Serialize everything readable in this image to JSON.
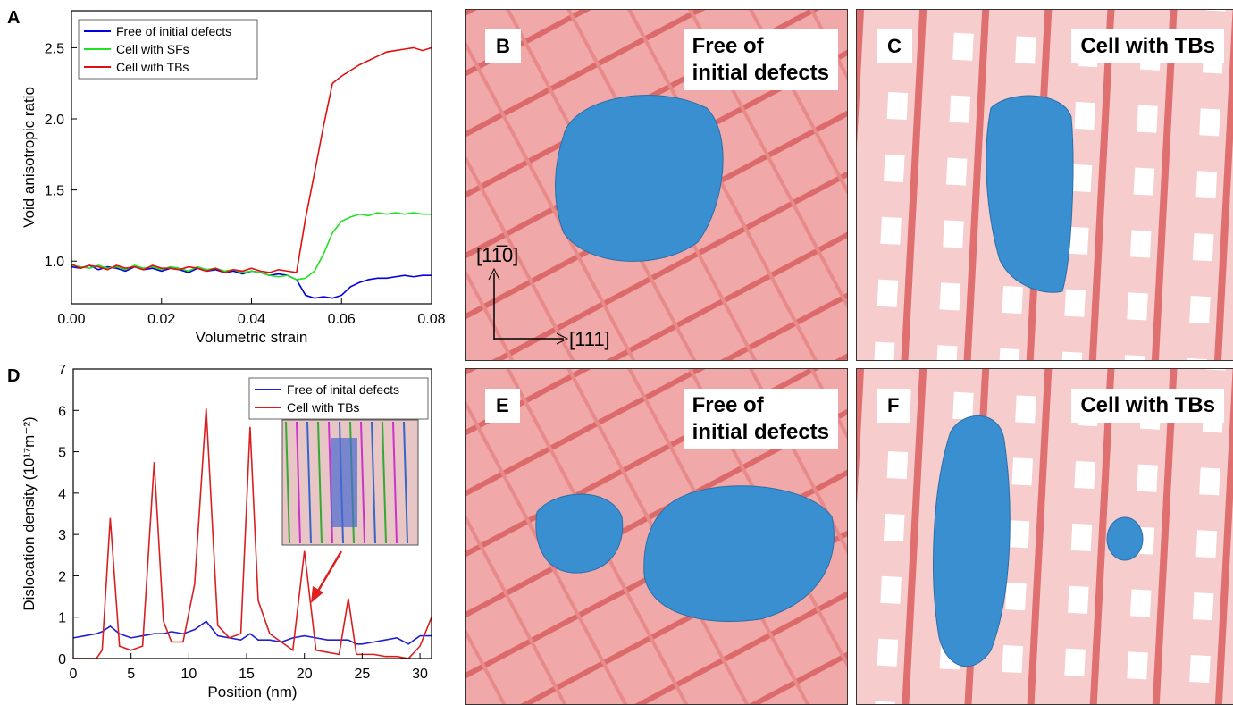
{
  "chart_data": [
    {
      "type": "line",
      "panel_label": "A",
      "x_label": "Volumetric strain",
      "y_label": "Void anisotropic ratio",
      "x": [
        0,
        0.002,
        0.004,
        0.006,
        0.008,
        0.01,
        0.012,
        0.014,
        0.016,
        0.018,
        0.02,
        0.022,
        0.024,
        0.026,
        0.028,
        0.03,
        0.032,
        0.034,
        0.036,
        0.038,
        0.04,
        0.042,
        0.044,
        0.046,
        0.048,
        0.05,
        0.052,
        0.054,
        0.056,
        0.058,
        0.06,
        0.062,
        0.064,
        0.066,
        0.068,
        0.07,
        0.072,
        0.074,
        0.076,
        0.078,
        0.08
      ],
      "series": [
        {
          "name": "Free of initial defects",
          "color": "#0000e0",
          "values": [
            0.96,
            0.95,
            0.97,
            0.94,
            0.96,
            0.95,
            0.93,
            0.96,
            0.94,
            0.95,
            0.93,
            0.95,
            0.94,
            0.92,
            0.95,
            0.93,
            0.94,
            0.92,
            0.93,
            0.91,
            0.93,
            0.92,
            0.9,
            0.91,
            0.9,
            0.87,
            0.76,
            0.74,
            0.75,
            0.74,
            0.76,
            0.82,
            0.85,
            0.87,
            0.88,
            0.88,
            0.89,
            0.9,
            0.89,
            0.9,
            0.9
          ]
        },
        {
          "name": "Cell with SFs",
          "color": "#22e022",
          "values": [
            0.97,
            0.96,
            0.95,
            0.97,
            0.95,
            0.96,
            0.94,
            0.97,
            0.95,
            0.96,
            0.94,
            0.96,
            0.95,
            0.93,
            0.96,
            0.94,
            0.95,
            0.93,
            0.94,
            0.92,
            0.93,
            0.92,
            0.9,
            0.89,
            0.9,
            0.87,
            0.88,
            0.93,
            1.05,
            1.2,
            1.28,
            1.31,
            1.33,
            1.32,
            1.34,
            1.33,
            1.34,
            1.33,
            1.34,
            1.33,
            1.33
          ]
        },
        {
          "name": "Cell with TBs",
          "color": "#e01010",
          "values": [
            0.98,
            0.95,
            0.97,
            0.96,
            0.94,
            0.97,
            0.95,
            0.96,
            0.94,
            0.97,
            0.95,
            0.95,
            0.94,
            0.96,
            0.95,
            0.93,
            0.95,
            0.92,
            0.94,
            0.93,
            0.95,
            0.93,
            0.92,
            0.94,
            0.93,
            0.92,
            1.3,
            1.62,
            1.95,
            2.25,
            2.3,
            2.34,
            2.38,
            2.41,
            2.44,
            2.47,
            2.48,
            2.49,
            2.5,
            2.48,
            2.5
          ]
        }
      ],
      "xlim": [
        0,
        0.08
      ],
      "ylim": [
        0.7,
        2.76
      ],
      "xticks": [
        {
          "value": 0,
          "label": "0.00"
        },
        {
          "value": 0.02,
          "label": "0.02"
        },
        {
          "value": 0.04,
          "label": "0.04"
        },
        {
          "value": 0.06,
          "label": "0.06"
        },
        {
          "value": 0.08,
          "label": "0.08"
        }
      ],
      "yticks": [
        {
          "value": 1,
          "label": "1.0"
        },
        {
          "value": 1.5,
          "label": "1.5"
        },
        {
          "value": 2,
          "label": "2.0"
        },
        {
          "value": 2.5,
          "label": "2.5"
        }
      ],
      "legend": "upper left"
    },
    {
      "type": "line",
      "panel_label": "D",
      "x_label": "Position (nm)",
      "y_label": "Dislocation density (10¹⁷m⁻²)",
      "x": [
        0,
        1,
        2,
        2.5,
        3.2,
        4,
        5,
        6,
        7,
        7.8,
        8.5,
        9.5,
        10.5,
        11.5,
        12.5,
        13.5,
        14.5,
        15.3,
        16,
        17,
        18,
        19,
        20,
        21,
        22,
        23,
        23.8,
        24.5,
        25,
        26,
        27,
        28,
        29,
        30,
        31
      ],
      "series": [
        {
          "name": "Free of inital defects",
          "color": "#2020d0",
          "values": [
            0.5,
            0.55,
            0.6,
            0.65,
            0.78,
            0.6,
            0.5,
            0.55,
            0.6,
            0.6,
            0.65,
            0.6,
            0.7,
            0.9,
            0.55,
            0.5,
            0.45,
            0.6,
            0.45,
            0.45,
            0.4,
            0.5,
            0.55,
            0.5,
            0.45,
            0.45,
            0.45,
            0.35,
            0.35,
            0.4,
            0.45,
            0.5,
            0.35,
            0.55,
            0.55
          ]
        },
        {
          "name": "Cell with TBs",
          "color": "#d82020",
          "values": [
            0,
            0,
            0,
            0.2,
            3.4,
            0.3,
            0.2,
            0.3,
            4.75,
            0.9,
            0.4,
            0.4,
            1.8,
            6.05,
            0.8,
            0.5,
            0.6,
            5.6,
            1.4,
            0.6,
            0.4,
            0.2,
            2.6,
            0.2,
            0.15,
            0.1,
            1.45,
            0.1,
            0.1,
            0.1,
            0.05,
            0.05,
            0,
            0.3,
            1.0
          ]
        }
      ],
      "xlim": [
        0,
        31
      ],
      "ylim": [
        0,
        7
      ],
      "xticks": [
        0,
        5,
        10,
        15,
        20,
        25,
        30
      ],
      "yticks": [
        0,
        1,
        2,
        3,
        4,
        5,
        6,
        7
      ],
      "legend": "upper right"
    }
  ],
  "panels": [
    {
      "label": "B",
      "caption": [
        "Free of",
        "initial defects"
      ],
      "axis_y": "[11̅0]",
      "axis_x": "[111]"
    },
    {
      "label": "C",
      "caption": [
        "Cell with TBs"
      ]
    },
    {
      "label": "E",
      "caption": [
        "Free of",
        "initial defects"
      ]
    },
    {
      "label": "F",
      "caption": [
        "Cell with TBs"
      ]
    }
  ]
}
